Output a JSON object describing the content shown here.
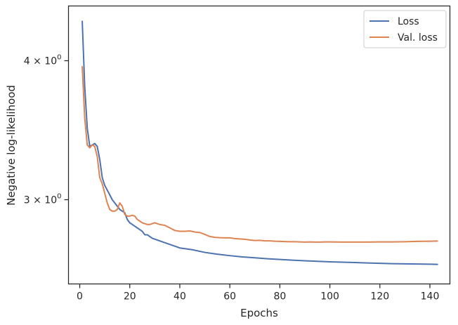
{
  "chart_data": {
    "type": "line",
    "title": "",
    "xlabel": "Epochs",
    "ylabel": "Negative log-likelihood",
    "y_scale": "log",
    "xlim": [
      -4.5,
      148.0
    ],
    "ylim": [
      2.52,
      4.48
    ],
    "x_ticks": [
      0,
      20,
      40,
      60,
      80,
      100,
      120,
      140
    ],
    "x_tick_labels": [
      "0",
      "20",
      "40",
      "60",
      "80",
      "100",
      "120",
      "140"
    ],
    "y_ticks": [
      {
        "value": 4.0,
        "base": "4",
        "mult": "×",
        "ten": "10",
        "exp": "0"
      },
      {
        "value": 3.0,
        "base": "3",
        "mult": "×",
        "ten": "10",
        "exp": "0"
      }
    ],
    "grid": false,
    "legend_position": "upper right",
    "series": [
      {
        "name": "Loss",
        "color": "#4c72b0",
        "points": [
          [
            1,
            4.34
          ],
          [
            2,
            3.79
          ],
          [
            3,
            3.48
          ],
          [
            4,
            3.35
          ],
          [
            5,
            3.36
          ],
          [
            6,
            3.37
          ],
          [
            7,
            3.35
          ],
          [
            8,
            3.26
          ],
          [
            9,
            3.14
          ],
          [
            10,
            3.09
          ],
          [
            11,
            3.06
          ],
          [
            12,
            3.03
          ],
          [
            13,
            3.0
          ],
          [
            14,
            2.98
          ],
          [
            15,
            2.96
          ],
          [
            16,
            2.94
          ],
          [
            17,
            2.93
          ],
          [
            18,
            2.92
          ],
          [
            19,
            2.88
          ],
          [
            20,
            2.86
          ],
          [
            21,
            2.85
          ],
          [
            22,
            2.84
          ],
          [
            23,
            2.83
          ],
          [
            24,
            2.82
          ],
          [
            25,
            2.81
          ],
          [
            26,
            2.79
          ],
          [
            27,
            2.79
          ],
          [
            28,
            2.78
          ],
          [
            29,
            2.77
          ],
          [
            30,
            2.765
          ],
          [
            32,
            2.755
          ],
          [
            34,
            2.745
          ],
          [
            36,
            2.735
          ],
          [
            38,
            2.725
          ],
          [
            40,
            2.715
          ],
          [
            45,
            2.705
          ],
          [
            50,
            2.69
          ],
          [
            55,
            2.68
          ],
          [
            60,
            2.672
          ],
          [
            65,
            2.665
          ],
          [
            70,
            2.66
          ],
          [
            75,
            2.655
          ],
          [
            80,
            2.651
          ],
          [
            85,
            2.647
          ],
          [
            90,
            2.644
          ],
          [
            95,
            2.641
          ],
          [
            100,
            2.638
          ],
          [
            105,
            2.636
          ],
          [
            110,
            2.634
          ],
          [
            115,
            2.632
          ],
          [
            120,
            2.63
          ],
          [
            125,
            2.628
          ],
          [
            130,
            2.627
          ],
          [
            135,
            2.626
          ],
          [
            140,
            2.625
          ],
          [
            143,
            2.624
          ]
        ]
      },
      {
        "name": "Val. loss",
        "color": "#dd8452",
        "points": [
          [
            1,
            3.95
          ],
          [
            2,
            3.55
          ],
          [
            3,
            3.36
          ],
          [
            4,
            3.34
          ],
          [
            5,
            3.36
          ],
          [
            6,
            3.35
          ],
          [
            7,
            3.28
          ],
          [
            8,
            3.14
          ],
          [
            9,
            3.1
          ],
          [
            10,
            3.04
          ],
          [
            11,
            2.98
          ],
          [
            12,
            2.94
          ],
          [
            13,
            2.93
          ],
          [
            14,
            2.93
          ],
          [
            15,
            2.94
          ],
          [
            16,
            2.98
          ],
          [
            17,
            2.96
          ],
          [
            18,
            2.91
          ],
          [
            19,
            2.9
          ],
          [
            20,
            2.9
          ],
          [
            21,
            2.905
          ],
          [
            22,
            2.9
          ],
          [
            23,
            2.88
          ],
          [
            24,
            2.87
          ],
          [
            25,
            2.86
          ],
          [
            26,
            2.855
          ],
          [
            27,
            2.85
          ],
          [
            28,
            2.85
          ],
          [
            29,
            2.855
          ],
          [
            30,
            2.86
          ],
          [
            32,
            2.85
          ],
          [
            34,
            2.845
          ],
          [
            36,
            2.83
          ],
          [
            38,
            2.815
          ],
          [
            40,
            2.81
          ],
          [
            42,
            2.81
          ],
          [
            44,
            2.812
          ],
          [
            46,
            2.806
          ],
          [
            48,
            2.803
          ],
          [
            50,
            2.792
          ],
          [
            52,
            2.78
          ],
          [
            54,
            2.775
          ],
          [
            56,
            2.773
          ],
          [
            58,
            2.772
          ],
          [
            60,
            2.772
          ],
          [
            62,
            2.768
          ],
          [
            64,
            2.766
          ],
          [
            66,
            2.764
          ],
          [
            68,
            2.76
          ],
          [
            70,
            2.757
          ],
          [
            72,
            2.758
          ],
          [
            74,
            2.755
          ],
          [
            76,
            2.755
          ],
          [
            78,
            2.753
          ],
          [
            80,
            2.752
          ],
          [
            82,
            2.751
          ],
          [
            84,
            2.75
          ],
          [
            86,
            2.75
          ],
          [
            88,
            2.749
          ],
          [
            90,
            2.748
          ],
          [
            92,
            2.749
          ],
          [
            94,
            2.748
          ],
          [
            96,
            2.748
          ],
          [
            98,
            2.749
          ],
          [
            100,
            2.749
          ],
          [
            105,
            2.748
          ],
          [
            110,
            2.748
          ],
          [
            115,
            2.748
          ],
          [
            120,
            2.749
          ],
          [
            125,
            2.749
          ],
          [
            130,
            2.75
          ],
          [
            135,
            2.752
          ],
          [
            140,
            2.753
          ],
          [
            143,
            2.754
          ]
        ]
      }
    ]
  }
}
